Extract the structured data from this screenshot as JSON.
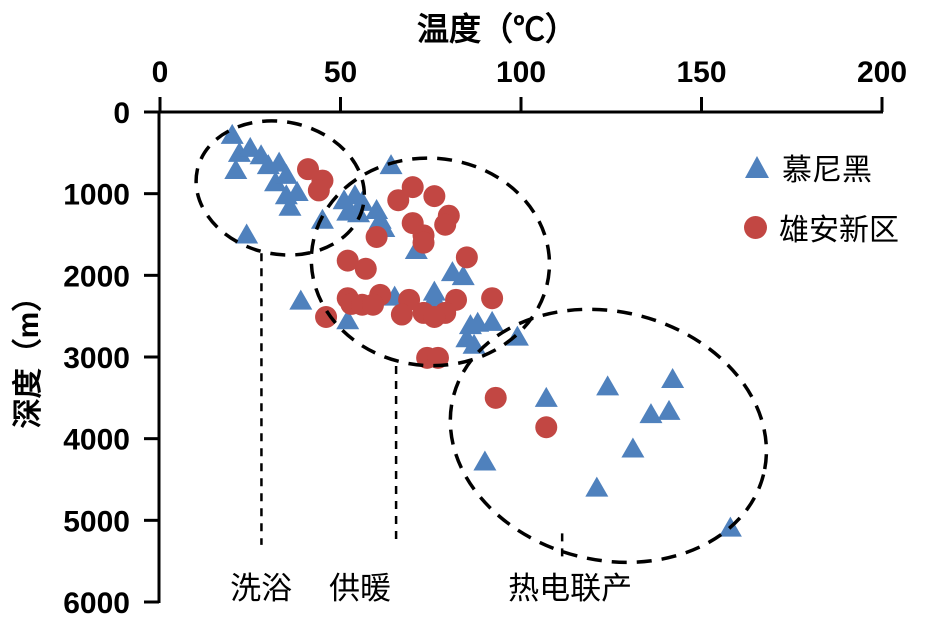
{
  "chart_data": {
    "type": "scatter",
    "title": "温度（℃）",
    "ylabel": "深度（m）",
    "grid": false,
    "legend_position": "top-right",
    "x_axis": {
      "min": 0,
      "max": 200,
      "ticks": [
        0,
        50,
        100,
        150,
        200
      ],
      "position": "top"
    },
    "y_axis": {
      "min": 0,
      "max": 6000,
      "ticks": [
        0,
        1000,
        2000,
        3000,
        4000,
        5000,
        6000
      ],
      "inverted": true
    },
    "series": [
      {
        "name": "慕尼黑",
        "marker": "triangle",
        "color": "#4F81BD",
        "points": [
          [
            20,
            280
          ],
          [
            22,
            500
          ],
          [
            25,
            440
          ],
          [
            28,
            530
          ],
          [
            21,
            710
          ],
          [
            30,
            650
          ],
          [
            33,
            620
          ],
          [
            32,
            860
          ],
          [
            35,
            770
          ],
          [
            35,
            1020
          ],
          [
            36,
            1160
          ],
          [
            38,
            980
          ],
          [
            24,
            1500
          ],
          [
            64,
            650
          ],
          [
            51,
            1080
          ],
          [
            54,
            1020
          ],
          [
            56,
            1100
          ],
          [
            52,
            1220
          ],
          [
            55,
            1240
          ],
          [
            45,
            1320
          ],
          [
            60,
            1200
          ],
          [
            61,
            1320
          ],
          [
            62,
            1420
          ],
          [
            71,
            1690
          ],
          [
            81,
            1960
          ],
          [
            84,
            2010
          ],
          [
            76,
            2200
          ],
          [
            39,
            2310
          ],
          [
            52,
            2550
          ],
          [
            65,
            2260
          ],
          [
            76,
            2280
          ],
          [
            86,
            2610
          ],
          [
            88,
            2580
          ],
          [
            92,
            2570
          ],
          [
            85,
            2770
          ],
          [
            87,
            2850
          ],
          [
            99,
            2750
          ],
          [
            107,
            3500
          ],
          [
            124,
            3360
          ],
          [
            142,
            3270
          ],
          [
            136,
            3700
          ],
          [
            141,
            3660
          ],
          [
            131,
            4120
          ],
          [
            90,
            4280
          ],
          [
            121,
            4600
          ],
          [
            158,
            5090
          ]
        ]
      },
      {
        "name": "雄安新区",
        "marker": "circle",
        "color": "#C24743",
        "points": [
          [
            41,
            700
          ],
          [
            45,
            840
          ],
          [
            44,
            960
          ],
          [
            70,
            920
          ],
          [
            76,
            1030
          ],
          [
            66,
            1080
          ],
          [
            80,
            1270
          ],
          [
            70,
            1360
          ],
          [
            79,
            1380
          ],
          [
            73,
            1510
          ],
          [
            60,
            1530
          ],
          [
            73,
            1600
          ],
          [
            85,
            1780
          ],
          [
            52,
            1820
          ],
          [
            57,
            1920
          ],
          [
            61,
            2240
          ],
          [
            52,
            2280
          ],
          [
            92,
            2280
          ],
          [
            69,
            2300
          ],
          [
            82,
            2300
          ],
          [
            53,
            2350
          ],
          [
            56,
            2360
          ],
          [
            59,
            2360
          ],
          [
            73,
            2460
          ],
          [
            79,
            2460
          ],
          [
            67,
            2480
          ],
          [
            46,
            2510
          ],
          [
            76,
            2510
          ],
          [
            74,
            3010
          ],
          [
            77,
            3010
          ],
          [
            93,
            3500
          ],
          [
            107,
            3860
          ]
        ]
      }
    ],
    "cluster_ellipses": [
      {
        "label": "洗浴",
        "center_temp": 33.3,
        "center_depth": 930,
        "rx_temp": 23.5,
        "ry_depth": 810,
        "rotation_deg": 12
      },
      {
        "label": "供暖",
        "center_temp": 74.9,
        "center_depth": 1835,
        "rx_temp": 33.0,
        "ry_depth": 1270,
        "rotation_deg": 4
      },
      {
        "label": "热电联产",
        "center_temp": 124.2,
        "center_depth": 3965,
        "rx_temp": 44.3,
        "ry_depth": 1520,
        "rotation_deg": 14
      }
    ],
    "annotations": [
      {
        "label": "洗浴",
        "line_temp": 28.1,
        "line_depth_from": 1730,
        "line_depth_to": 5300,
        "label_temp": 28.0,
        "label_depth": 5830
      },
      {
        "label": "供暖",
        "line_temp": 65.4,
        "line_depth_from": 3110,
        "line_depth_to": 5300,
        "label_temp": 55.4,
        "label_depth": 5830
      },
      {
        "label": "热电联产",
        "line_temp": 111.4,
        "line_depth_from": 5160,
        "line_depth_to": 5500,
        "label_temp": 113.6,
        "label_depth": 5830
      }
    ]
  }
}
